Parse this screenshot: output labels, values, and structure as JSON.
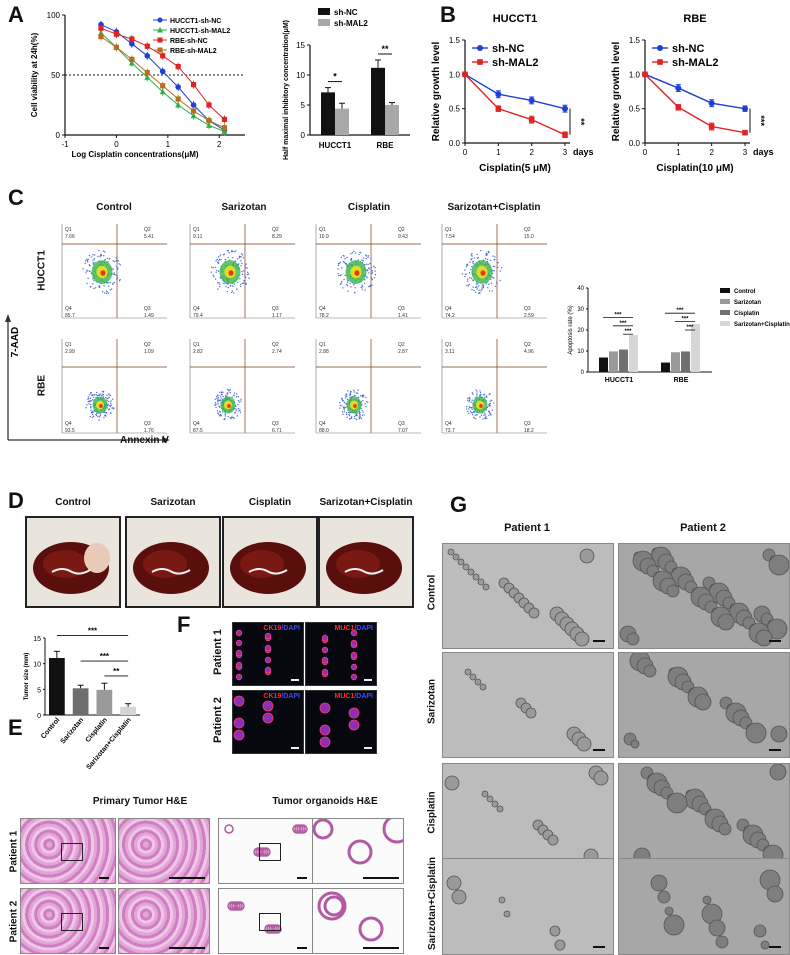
{
  "panels": {
    "A": "A",
    "B": "B",
    "C": "C",
    "D": "D",
    "E": "E",
    "F": "F",
    "G": "G"
  },
  "colors": {
    "nc": "#1f3fd6",
    "mal2": "#e02424",
    "g1": "#29b34a",
    "g2": "#b07020"
  },
  "chart_data": [
    {
      "type": "scatter",
      "xlabel": "Log Cisplatin concentrations(μM)",
      "ylabel": "Cell viability at 24h(%)",
      "xlim": [
        -1,
        2.5
      ],
      "ylim": [
        0,
        100
      ],
      "xticks": [
        "-1",
        "0",
        "1",
        "2"
      ],
      "yticks": [
        "0",
        "50",
        "100"
      ],
      "reference_line": 50,
      "legend_position": "top-right",
      "x": [
        -0.3,
        0,
        0.3,
        0.6,
        0.9,
        1.2,
        1.5,
        1.8,
        2.1
      ],
      "series": [
        {
          "name": "HUCCT1-sh-NC",
          "color": "#1f3fd6",
          "values": [
            92,
            86,
            76,
            66,
            53,
            40,
            25,
            12,
            4
          ]
        },
        {
          "name": "HUCCT1-sh-MAL2",
          "color": "#29b34a",
          "values": [
            85,
            73,
            60,
            48,
            36,
            25,
            16,
            8,
            3
          ]
        },
        {
          "name": "RBE-sh-NC",
          "color": "#e02424",
          "values": [
            89,
            84,
            80,
            74,
            66,
            57,
            42,
            25,
            13
          ]
        },
        {
          "name": "RBE-sh-MAL2",
          "color": "#b07020",
          "values": [
            82,
            73,
            63,
            52,
            41,
            30,
            20,
            12,
            6
          ]
        }
      ]
    },
    {
      "type": "bar",
      "ylabel": "Half maximal inhibitory concentration(μM)",
      "categories": [
        "HUCCT1",
        "RBE"
      ],
      "ylim": [
        0,
        15
      ],
      "yticks": [
        "0",
        "5",
        "10",
        "15"
      ],
      "legend_position": "top",
      "series": [
        {
          "name": "sh-NC",
          "color": "#111111",
          "values": [
            7.1,
            11.2
          ],
          "err": [
            0.8,
            1.3
          ]
        },
        {
          "name": "sh-MAL2",
          "color": "#a8a8a8",
          "values": [
            4.4,
            5.0
          ],
          "err": [
            0.9,
            0.4
          ]
        }
      ],
      "significance": [
        "*",
        "**"
      ]
    },
    {
      "type": "line",
      "title": "HUCCT1",
      "xlabel": "Cisplatin(5 μM)",
      "ylabel": "Relative growth level",
      "x_unit": "days",
      "x": [
        0,
        1,
        2,
        3
      ],
      "ylim": [
        0,
        1.5
      ],
      "yticks": [
        "0.0",
        "0.5",
        "1.0",
        "1.5"
      ],
      "xticks": [
        "0",
        "1",
        "2",
        "3"
      ],
      "legend_position": "top-right",
      "series": [
        {
          "name": "sh-NC",
          "color": "#1f3fd6",
          "values": [
            1.0,
            0.71,
            0.62,
            0.5
          ],
          "err": [
            0,
            0.05,
            0.05,
            0.05
          ]
        },
        {
          "name": "sh-MAL2",
          "color": "#e02424",
          "values": [
            1.0,
            0.5,
            0.34,
            0.12
          ],
          "err": [
            0,
            0.04,
            0.05,
            0.04
          ]
        }
      ],
      "significance": "**"
    },
    {
      "type": "line",
      "title": "RBE",
      "xlabel": "Cisplatin(10 μM)",
      "ylabel": "Relative growth level",
      "x_unit": "days",
      "x": [
        0,
        1,
        2,
        3
      ],
      "ylim": [
        0,
        1.5
      ],
      "yticks": [
        "0.0",
        "0.5",
        "1.0",
        "1.5"
      ],
      "xticks": [
        "0",
        "1",
        "2",
        "3"
      ],
      "legend_position": "top-right",
      "series": [
        {
          "name": "sh-NC",
          "color": "#1f3fd6",
          "values": [
            1.0,
            0.8,
            0.58,
            0.5
          ],
          "err": [
            0,
            0.05,
            0.05,
            0.04
          ]
        },
        {
          "name": "sh-MAL2",
          "color": "#e02424",
          "values": [
            1.0,
            0.52,
            0.24,
            0.15
          ],
          "err": [
            0,
            0.04,
            0.05,
            0.02
          ]
        }
      ],
      "significance": "***"
    },
    {
      "type": "bar",
      "ylabel": "Apoptosis rate (%)",
      "categories": [
        "HUCCT1",
        "RBE"
      ],
      "ylim": [
        0,
        40
      ],
      "yticks": [
        "0",
        "10",
        "20",
        "30",
        "40"
      ],
      "legend_position": "right",
      "series": [
        {
          "name": "Control",
          "color": "#111111",
          "values": [
            6.9,
            4.5
          ]
        },
        {
          "name": "Sarizotan",
          "color": "#9a9a9a",
          "values": [
            9.8,
            9.4
          ]
        },
        {
          "name": "Cisplatin",
          "color": "#707070",
          "values": [
            10.7,
            9.8
          ]
        },
        {
          "name": "Sarizotan+Cisplatin",
          "color": "#d6d6d6",
          "values": [
            17.6,
            22.8
          ]
        }
      ],
      "significance": [
        "***",
        "***",
        "***",
        "***",
        "***",
        "***"
      ]
    },
    {
      "type": "bar",
      "ylabel": "Tumor size (mm)",
      "categories": [
        "Control",
        "Sarizotan",
        "Cisplatin",
        "Sarizotan+Cisplatin"
      ],
      "ylim": [
        0,
        15
      ],
      "yticks": [
        "0",
        "5",
        "10",
        "15"
      ],
      "values": [
        11.1,
        5.2,
        4.9,
        1.6
      ],
      "err": [
        1.3,
        0.6,
        1.3,
        0.6
      ],
      "colors": [
        "#111111",
        "#6e6e6e",
        "#9a9a9a",
        "#d6d6d6"
      ],
      "significance": [
        "***",
        "***",
        "**"
      ]
    }
  ],
  "flow": {
    "conditions": [
      "Control",
      "Sarizotan",
      "Cisplatin",
      "Sarizotan+Cisplatin"
    ],
    "rows": [
      "HUCCT1",
      "RBE"
    ],
    "yaxis": "7-AAD",
    "xaxis": "Annexin V",
    "quadrant_labels": [
      "Q1",
      "Q2",
      "Q3",
      "Q4"
    ],
    "values": [
      [
        [
          "7.66",
          "5.41",
          "1.49",
          "85.7"
        ],
        [
          "9.11",
          "8.29",
          "1.17",
          "79.4"
        ],
        [
          "10.9",
          "9.43",
          "1.41",
          "78.2"
        ],
        [
          "7.54",
          "15.0",
          "2.59",
          "74.2"
        ]
      ],
      [
        [
          "2.99",
          "1.09",
          "1.76",
          "93.5"
        ],
        [
          "2.82",
          "2.74",
          "6.71",
          "87.5"
        ],
        [
          "2.88",
          "2.87",
          "7.07",
          "88.0"
        ],
        [
          "3.11",
          "4.96",
          "18.2",
          "73.7"
        ]
      ]
    ]
  },
  "D": {
    "conditions": [
      "Control",
      "Sarizotan",
      "Cisplatin",
      "Sarizotan+Cisplatin"
    ]
  },
  "E": {
    "primary": "Primary Tumor H&E",
    "organoids": "Tumor organoids H&E",
    "patients": [
      "Patient 1",
      "Patient 2"
    ]
  },
  "F": {
    "patients": [
      "Patient 1",
      "Patient 2"
    ],
    "markers": [
      "CK19",
      "MUC1"
    ],
    "dapi": "DAPI"
  },
  "G": {
    "patients": [
      "Patient 1",
      "Patient 2"
    ],
    "conditions": [
      "Control",
      "Sarizotan",
      "Cisplatin",
      "Sarizotan+Cisplatin"
    ]
  }
}
